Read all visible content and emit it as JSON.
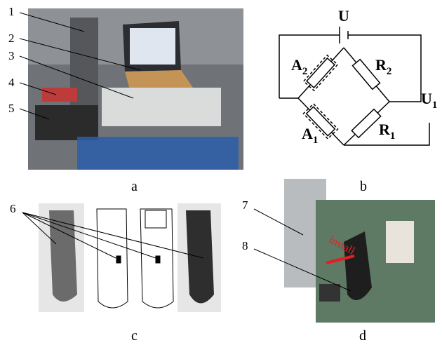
{
  "panels": {
    "a": {
      "label": "a",
      "callouts": [
        "1",
        "2",
        "3",
        "4",
        "5"
      ]
    },
    "b": {
      "label": "b",
      "circuit": {
        "source": "U",
        "gauge_top": {
          "letter": "A",
          "subscript": "2"
        },
        "resistor_top": {
          "letter": "R",
          "subscript": "2"
        },
        "gauge_bottom": {
          "letter": "A",
          "subscript": "1"
        },
        "resistor_bottom": {
          "letter": "R",
          "subscript": "1"
        },
        "output": {
          "letter": "U",
          "subscript": "1"
        }
      }
    },
    "c": {
      "label": "c",
      "callouts": [
        "6"
      ]
    },
    "d": {
      "label": "d",
      "callouts": [
        "7",
        "8"
      ],
      "annotation": "install"
    }
  }
}
